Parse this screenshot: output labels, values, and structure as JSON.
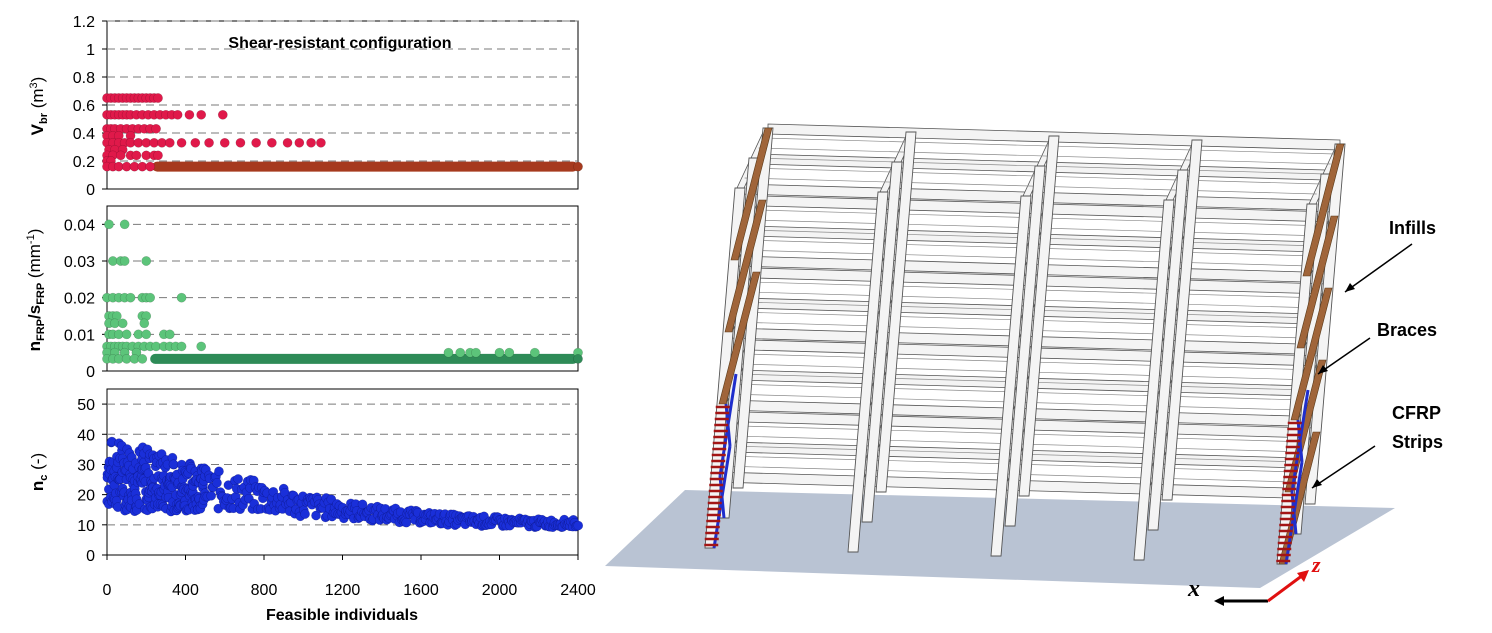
{
  "chart_data": [
    {
      "type": "scatter",
      "title": "Shear-resistant configuration",
      "ylabel": {
        "main": "V",
        "sub": "br",
        "unit": " (m",
        "sup": "3",
        "close": ")"
      },
      "ylim": [
        0,
        1.2
      ],
      "yticks": [
        "0",
        "0.2",
        "0.4",
        "0.6",
        "0.8",
        "1",
        "1.2"
      ],
      "xlim": [
        0,
        2400
      ],
      "color": "#e0194a",
      "color_dense": "#a63a1e",
      "band": {
        "y": 0.16,
        "x_from": 230,
        "x_to": 2400
      },
      "levels": [
        0.65,
        0.53,
        0.43,
        0.33,
        0.24,
        0.16
      ],
      "points": [
        [
          0,
          0.65
        ],
        [
          20,
          0.65
        ],
        [
          40,
          0.65
        ],
        [
          60,
          0.65
        ],
        [
          80,
          0.65
        ],
        [
          100,
          0.65
        ],
        [
          120,
          0.65
        ],
        [
          140,
          0.65
        ],
        [
          160,
          0.65
        ],
        [
          180,
          0.65
        ],
        [
          200,
          0.65
        ],
        [
          220,
          0.65
        ],
        [
          240,
          0.65
        ],
        [
          260,
          0.65
        ],
        [
          0,
          0.53
        ],
        [
          20,
          0.53
        ],
        [
          40,
          0.53
        ],
        [
          60,
          0.53
        ],
        [
          80,
          0.53
        ],
        [
          100,
          0.53
        ],
        [
          120,
          0.53
        ],
        [
          150,
          0.53
        ],
        [
          180,
          0.53
        ],
        [
          210,
          0.53
        ],
        [
          240,
          0.53
        ],
        [
          270,
          0.53
        ],
        [
          300,
          0.53
        ],
        [
          330,
          0.53
        ],
        [
          360,
          0.53
        ],
        [
          420,
          0.53
        ],
        [
          480,
          0.53
        ],
        [
          590,
          0.53
        ],
        [
          0,
          0.43
        ],
        [
          20,
          0.43
        ],
        [
          40,
          0.43
        ],
        [
          70,
          0.43
        ],
        [
          100,
          0.43
        ],
        [
          130,
          0.43
        ],
        [
          160,
          0.43
        ],
        [
          190,
          0.43
        ],
        [
          220,
          0.43
        ],
        [
          250,
          0.43
        ],
        [
          0,
          0.38
        ],
        [
          30,
          0.38
        ],
        [
          60,
          0.38
        ],
        [
          120,
          0.38
        ],
        [
          0,
          0.33
        ],
        [
          30,
          0.33
        ],
        [
          60,
          0.33
        ],
        [
          90,
          0.33
        ],
        [
          120,
          0.33
        ],
        [
          160,
          0.33
        ],
        [
          200,
          0.33
        ],
        [
          240,
          0.33
        ],
        [
          280,
          0.33
        ],
        [
          320,
          0.33
        ],
        [
          380,
          0.33
        ],
        [
          450,
          0.33
        ],
        [
          520,
          0.33
        ],
        [
          600,
          0.33
        ],
        [
          680,
          0.33
        ],
        [
          760,
          0.33
        ],
        [
          840,
          0.33
        ],
        [
          920,
          0.33
        ],
        [
          980,
          0.33
        ],
        [
          1040,
          0.33
        ],
        [
          1090,
          0.33
        ],
        [
          10,
          0.28
        ],
        [
          40,
          0.28
        ],
        [
          80,
          0.28
        ],
        [
          0,
          0.24
        ],
        [
          30,
          0.24
        ],
        [
          70,
          0.24
        ],
        [
          120,
          0.24
        ],
        [
          150,
          0.24
        ],
        [
          200,
          0.24
        ],
        [
          240,
          0.24
        ],
        [
          260,
          0.24
        ],
        [
          0,
          0.2
        ],
        [
          20,
          0.2
        ],
        [
          0,
          0.16
        ],
        [
          30,
          0.16
        ],
        [
          60,
          0.16
        ],
        [
          100,
          0.16
        ],
        [
          140,
          0.16
        ],
        [
          180,
          0.16
        ],
        [
          220,
          0.16
        ],
        [
          2400,
          0.16
        ]
      ]
    },
    {
      "type": "scatter",
      "ylabel": {
        "main": "n",
        "sub": "FRP",
        "mid": "/s",
        "sub2": "FRP",
        "unit": " (mm",
        "sup": "-1",
        "close": ")"
      },
      "ylim": [
        0,
        0.045
      ],
      "yticks": [
        "0",
        "0.01",
        "0.02",
        "0.03",
        "0.04"
      ],
      "ytick_values": [
        0,
        0.01,
        0.02,
        0.03,
        0.04
      ],
      "xlim": [
        0,
        2400
      ],
      "color": "#5cc47a",
      "color_dense": "#2e8b57",
      "band": {
        "y": 0.0033,
        "x_from": 220,
        "x_to": 2400
      },
      "points": [
        [
          10,
          0.04
        ],
        [
          90,
          0.04
        ],
        [
          30,
          0.03
        ],
        [
          70,
          0.03
        ],
        [
          90,
          0.03
        ],
        [
          200,
          0.03
        ],
        [
          0,
          0.02
        ],
        [
          30,
          0.02
        ],
        [
          60,
          0.02
        ],
        [
          90,
          0.02
        ],
        [
          120,
          0.02
        ],
        [
          180,
          0.02
        ],
        [
          200,
          0.02
        ],
        [
          220,
          0.02
        ],
        [
          380,
          0.02
        ],
        [
          10,
          0.015
        ],
        [
          30,
          0.015
        ],
        [
          50,
          0.015
        ],
        [
          180,
          0.015
        ],
        [
          200,
          0.015
        ],
        [
          10,
          0.013
        ],
        [
          40,
          0.013
        ],
        [
          80,
          0.013
        ],
        [
          190,
          0.013
        ],
        [
          10,
          0.01
        ],
        [
          30,
          0.01
        ],
        [
          60,
          0.01
        ],
        [
          100,
          0.01
        ],
        [
          160,
          0.01
        ],
        [
          200,
          0.01
        ],
        [
          290,
          0.01
        ],
        [
          320,
          0.01
        ],
        [
          0,
          0.0067
        ],
        [
          20,
          0.0067
        ],
        [
          40,
          0.0067
        ],
        [
          60,
          0.0067
        ],
        [
          80,
          0.0067
        ],
        [
          100,
          0.0067
        ],
        [
          130,
          0.0067
        ],
        [
          160,
          0.0067
        ],
        [
          190,
          0.0067
        ],
        [
          220,
          0.0067
        ],
        [
          250,
          0.0067
        ],
        [
          290,
          0.0067
        ],
        [
          320,
          0.0067
        ],
        [
          350,
          0.0067
        ],
        [
          380,
          0.0067
        ],
        [
          480,
          0.0067
        ],
        [
          0,
          0.005
        ],
        [
          40,
          0.005
        ],
        [
          90,
          0.005
        ],
        [
          150,
          0.005
        ],
        [
          0,
          0.0033
        ],
        [
          30,
          0.0033
        ],
        [
          60,
          0.0033
        ],
        [
          100,
          0.0033
        ],
        [
          140,
          0.0033
        ],
        [
          180,
          0.0033
        ],
        [
          1740,
          0.005
        ],
        [
          1800,
          0.005
        ],
        [
          1850,
          0.005
        ],
        [
          1880,
          0.005
        ],
        [
          2000,
          0.005
        ],
        [
          2050,
          0.005
        ],
        [
          2180,
          0.005
        ],
        [
          2400,
          0.005
        ],
        [
          2400,
          0.0033
        ]
      ]
    },
    {
      "type": "scatter",
      "ylabel": {
        "main": "n",
        "sub": "c",
        "unit": " (-)"
      },
      "ylim": [
        0,
        55
      ],
      "yticks": [
        "0",
        "10",
        "20",
        "30",
        "40",
        "50"
      ],
      "ytick_values": [
        0,
        10,
        20,
        30,
        40,
        50
      ],
      "xlim": [
        0,
        2400
      ],
      "xticks": [
        "0",
        "400",
        "800",
        "1200",
        "1600",
        "2000",
        "2400"
      ],
      "xtick_values": [
        0,
        400,
        800,
        1200,
        1600,
        2000,
        2400
      ],
      "xlabel": "Feasible individuals",
      "color": "#1a2fd9",
      "trend": [
        [
          0,
          27
        ],
        [
          200,
          25
        ],
        [
          400,
          23
        ],
        [
          600,
          21
        ],
        [
          800,
          19
        ],
        [
          1000,
          16.5
        ],
        [
          1200,
          15
        ],
        [
          1400,
          13.5
        ],
        [
          1600,
          12.5
        ],
        [
          1800,
          11.5
        ],
        [
          2000,
          11
        ],
        [
          2200,
          10.5
        ],
        [
          2400,
          10.5
        ]
      ],
      "spread": [
        [
          0,
          12
        ],
        [
          200,
          11
        ],
        [
          500,
          7
        ],
        [
          800,
          5
        ],
        [
          1200,
          3
        ],
        [
          1600,
          2
        ],
        [
          2400,
          1.2
        ]
      ]
    }
  ],
  "structure": {
    "labels": {
      "infills": "Infills",
      "braces": "Braces",
      "cfrp_line1": "CFRP",
      "cfrp_line2": "Strips",
      "axis_x": "x",
      "axis_z": "z"
    },
    "colors": {
      "frame": "#f4f4f4",
      "frame_stroke": "#555555",
      "ground": "#b9c3d3",
      "infill": "#a0653a",
      "brace": "#1f2ecc",
      "cfrp": "#a31515",
      "axis_z": "#e01010",
      "axis_x": "#000000"
    }
  }
}
